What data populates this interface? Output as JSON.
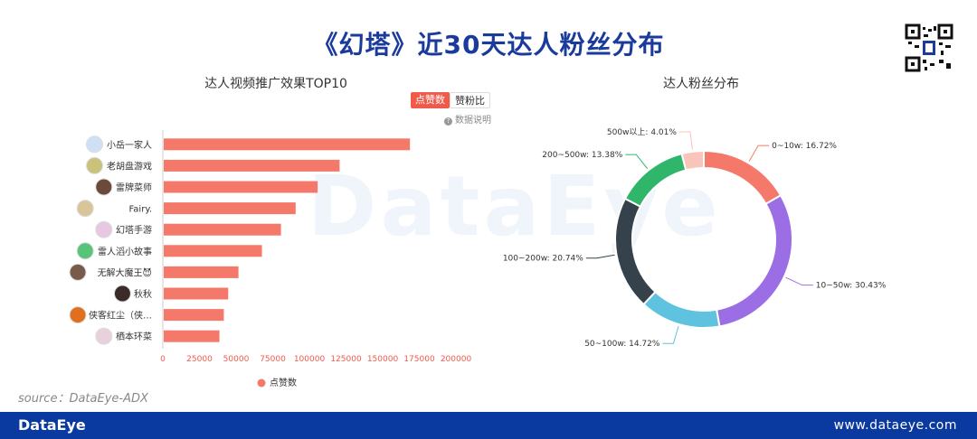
{
  "header": {
    "title": "《幻塔》近30天达人粉丝分布"
  },
  "watermark": "DataEye",
  "toggles": {
    "active": "点赞数",
    "inactive": "赞粉比"
  },
  "explain_label": "数据说明",
  "chart_data": [
    {
      "type": "bar",
      "orientation": "horizontal",
      "title": "达人视频推广效果TOP10",
      "categories": [
        "小岳一家人",
        "老胡盘游戏",
        "雷牌菜师",
        "Fairy.",
        "幻塔手游",
        "雷人滔小故事",
        "无解大魔王😈",
        "秋秋",
        "侠客红尘（侠…",
        "栖本环菜"
      ],
      "series": [
        {
          "name": "点赞数",
          "values": [
            168000,
            120000,
            105000,
            90000,
            80000,
            67000,
            51000,
            44000,
            41000,
            38000
          ],
          "color": "#f5796a"
        }
      ],
      "xlim": [
        0,
        200000
      ],
      "xticks": [
        "0",
        "25000",
        "50000",
        "75000",
        "100000",
        "125000",
        "150000",
        "175000",
        "200000"
      ],
      "legend_position": "bottom",
      "avatar_colors": [
        "#cfe0f5",
        "#c9c27a",
        "#6b4a3c",
        "#d9c59a",
        "#e8c8e0",
        "#58c47a",
        "#7a5a4a",
        "#3a2a28",
        "#e07020",
        "#e8d0dc"
      ]
    },
    {
      "type": "pie",
      "donut": true,
      "title": "达人粉丝分布",
      "slices": [
        {
          "label": "0~10w: 16.72%",
          "value": 16.72,
          "color": "#f5796a"
        },
        {
          "label": "10~50w: 30.43%",
          "value": 30.43,
          "color": "#9b6ee6"
        },
        {
          "label": "50~100w: 14.72%",
          "value": 14.72,
          "color": "#5fc2de"
        },
        {
          "label": "100~200w: 20.74%",
          "value": 20.74,
          "color": "#35424c"
        },
        {
          "label": "200~500w: 13.38%",
          "value": 13.38,
          "color": "#2fb66a"
        },
        {
          "label": "500w以上: 4.01%",
          "value": 4.01,
          "color": "#f9c4ba"
        }
      ]
    }
  ],
  "source": "source：DataEye-ADX",
  "footer": {
    "brand": "DataEye",
    "url": "www.dataeye.com"
  }
}
